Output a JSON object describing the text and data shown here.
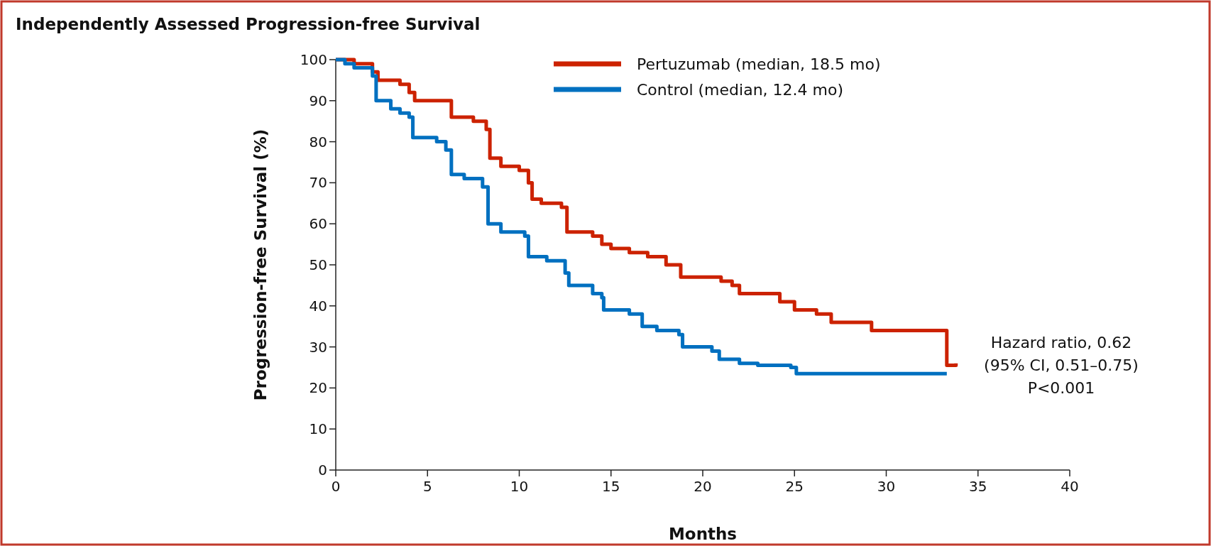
{
  "chart_data": {
    "type": "step",
    "title": "Independently Assessed Progression-free Survival",
    "xlabel": "Months",
    "ylabel": "Progression-free Survival (%)",
    "xlim": [
      0,
      40
    ],
    "xticks": [
      0,
      5,
      10,
      15,
      20,
      25,
      30,
      35,
      40
    ],
    "ylim": [
      0,
      100
    ],
    "yticks": [
      0,
      10,
      20,
      30,
      40,
      50,
      60,
      70,
      80,
      90,
      100
    ],
    "grid": false,
    "legend": "top",
    "line_style": "solid",
    "marker": "none",
    "series": [
      {
        "name": "Pertuzumab (median, 18.5 mo)",
        "color": "#cc2200",
        "x": [
          0,
          1,
          2,
          2.3,
          3.5,
          4,
          4.3,
          6.2,
          6.3,
          7.5,
          8.2,
          8.4,
          9,
          10,
          10.5,
          10.7,
          11.2,
          12.3,
          12.6,
          14,
          14.5,
          15,
          16,
          17,
          18,
          18.8,
          21,
          21.6,
          22,
          23.8,
          24.2,
          25,
          26.2,
          27,
          29.2,
          33.3,
          33.3,
          33.8
        ],
        "values": [
          100,
          99,
          97,
          95,
          94,
          92,
          90,
          90,
          86,
          85,
          83,
          76,
          74,
          73,
          70,
          66,
          65,
          64,
          58,
          57,
          55,
          54,
          53,
          52,
          50,
          47,
          46,
          45,
          43,
          43,
          41,
          39,
          38,
          36,
          34,
          34,
          25.5,
          26
        ]
      },
      {
        "name": "Control (median, 12.4 mo)",
        "color": "#0070c0",
        "x": [
          0,
          0.5,
          1,
          2,
          2.2,
          3,
          3.5,
          4,
          4.2,
          5.5,
          6,
          6.3,
          7,
          8,
          8.3,
          9,
          10.3,
          10.5,
          11.5,
          12.5,
          12.7,
          14,
          14.5,
          14.6,
          16,
          16.7,
          17.5,
          18.7,
          18.9,
          20.5,
          20.9,
          22,
          23,
          24.8,
          25.1,
          33.3
        ],
        "values": [
          100,
          99,
          98,
          96,
          90,
          88,
          87,
          86,
          81,
          80,
          78,
          72,
          71,
          69,
          60,
          58,
          57,
          52,
          51,
          48,
          45,
          43,
          42,
          39,
          38,
          35,
          34,
          33,
          30,
          29,
          27,
          26,
          25.5,
          25,
          23.5,
          23.5
        ]
      }
    ],
    "annotations": [
      "Hazard ratio, 0.62",
      "(95% CI, 0.51–0.75)",
      "P<0.001"
    ]
  }
}
